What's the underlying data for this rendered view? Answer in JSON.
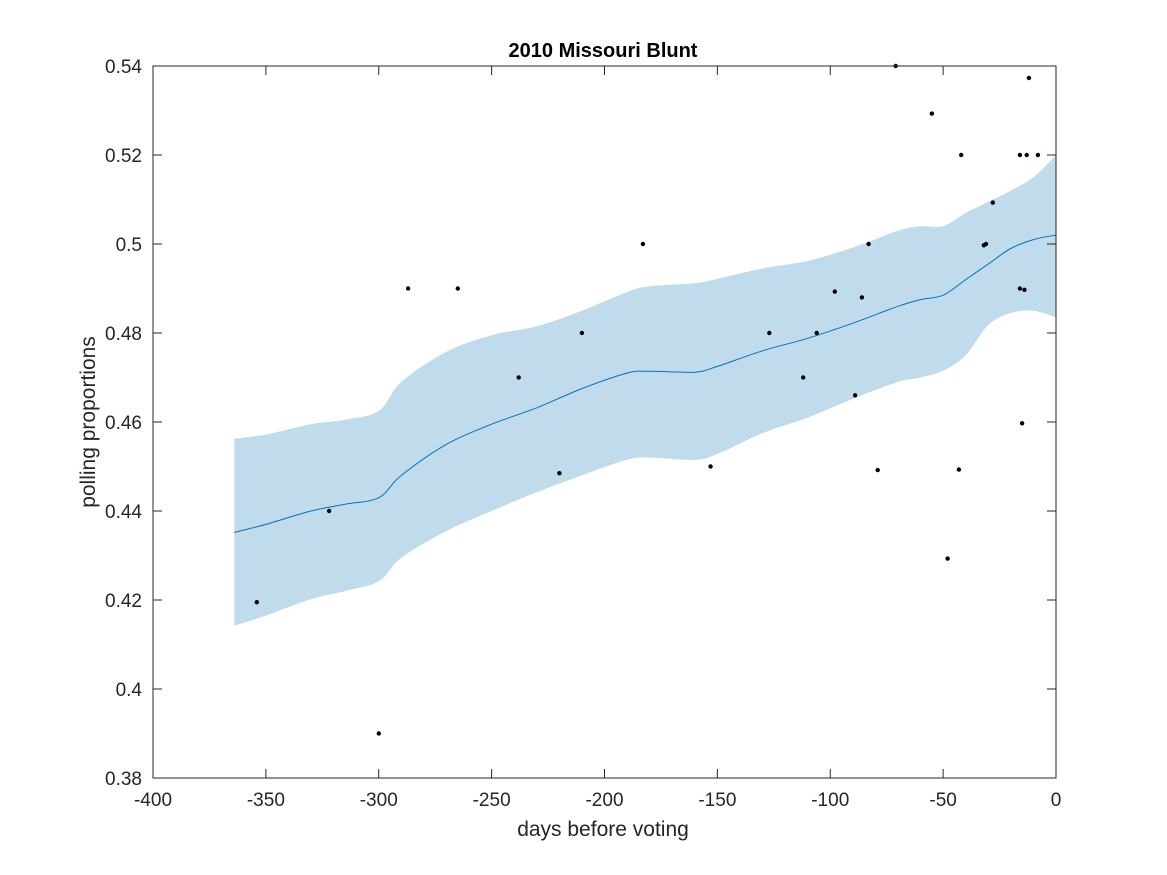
{
  "chart_data": {
    "type": "line",
    "title": "2010 Missouri Blunt",
    "xlabel": "days before voting",
    "ylabel": "polling proportions",
    "xlim": [
      -400,
      0
    ],
    "ylim": [
      0.38,
      0.54
    ],
    "xticks": [
      -400,
      -350,
      -300,
      -250,
      -200,
      -150,
      -100,
      -50,
      0
    ],
    "yticks": [
      0.38,
      0.4,
      0.42,
      0.44,
      0.46,
      0.48,
      0.5,
      0.52,
      0.54
    ],
    "xtick_labels": [
      "-400",
      "-350",
      "-300",
      "-250",
      "-200",
      "-150",
      "-100",
      "-50",
      "0"
    ],
    "ytick_labels": [
      "0.38",
      "0.4",
      "0.42",
      "0.44",
      "0.46",
      "0.48",
      "0.5",
      "0.52",
      "0.54"
    ],
    "grid": false,
    "colors": {
      "line": "#0072bd",
      "band": "#c0dcec",
      "points": "#000000",
      "axes": "#262626"
    },
    "trend": {
      "x": [
        -364,
        -350,
        -330,
        -315,
        -300,
        -290,
        -270,
        -250,
        -230,
        -210,
        -190,
        -180,
        -160,
        -150,
        -130,
        -110,
        -90,
        -70,
        -60,
        -50,
        -40,
        -30,
        -20,
        -10,
        0
      ],
      "y": [
        0.4352,
        0.437,
        0.44,
        0.4415,
        0.443,
        0.448,
        0.455,
        0.4595,
        0.4632,
        0.4675,
        0.471,
        0.4714,
        0.4712,
        0.4725,
        0.476,
        0.4788,
        0.4822,
        0.486,
        0.4875,
        0.4885,
        0.492,
        0.4955,
        0.499,
        0.501,
        0.502
      ]
    },
    "band": {
      "x": [
        -364,
        -350,
        -330,
        -315,
        -300,
        -290,
        -270,
        -250,
        -230,
        -210,
        -190,
        -180,
        -160,
        -150,
        -130,
        -110,
        -90,
        -70,
        -60,
        -50,
        -40,
        -30,
        -20,
        -10,
        0
      ],
      "upper": [
        0.4562,
        0.4572,
        0.4595,
        0.4605,
        0.4625,
        0.469,
        0.4758,
        0.4795,
        0.4815,
        0.485,
        0.4892,
        0.4905,
        0.4912,
        0.4922,
        0.4945,
        0.4962,
        0.4992,
        0.503,
        0.504,
        0.504,
        0.507,
        0.5095,
        0.512,
        0.515,
        0.52
      ],
      "lower": [
        0.4142,
        0.4165,
        0.4202,
        0.422,
        0.4242,
        0.4295,
        0.4355,
        0.44,
        0.4442,
        0.448,
        0.4515,
        0.452,
        0.4515,
        0.4528,
        0.4575,
        0.461,
        0.4652,
        0.469,
        0.47,
        0.4715,
        0.475,
        0.4818,
        0.4845,
        0.485,
        0.4835
      ]
    },
    "points": [
      {
        "x": -354,
        "y": 0.4195
      },
      {
        "x": -322,
        "y": 0.44
      },
      {
        "x": -300,
        "y": 0.39
      },
      {
        "x": -287,
        "y": 0.49
      },
      {
        "x": -265,
        "y": 0.49
      },
      {
        "x": -238,
        "y": 0.47
      },
      {
        "x": -220,
        "y": 0.4485
      },
      {
        "x": -210,
        "y": 0.48
      },
      {
        "x": -183,
        "y": 0.5
      },
      {
        "x": -153,
        "y": 0.45
      },
      {
        "x": -127,
        "y": 0.48
      },
      {
        "x": -112,
        "y": 0.47
      },
      {
        "x": -106,
        "y": 0.48
      },
      {
        "x": -98,
        "y": 0.4893
      },
      {
        "x": -89,
        "y": 0.466
      },
      {
        "x": -86,
        "y": 0.488
      },
      {
        "x": -83,
        "y": 0.5
      },
      {
        "x": -79,
        "y": 0.4492
      },
      {
        "x": -71,
        "y": 0.54
      },
      {
        "x": -55,
        "y": 0.5293
      },
      {
        "x": -48,
        "y": 0.4293
      },
      {
        "x": -43,
        "y": 0.4493
      },
      {
        "x": -42,
        "y": 0.52
      },
      {
        "x": -32,
        "y": 0.4997
      },
      {
        "x": -31,
        "y": 0.5
      },
      {
        "x": -28,
        "y": 0.5093
      },
      {
        "x": -16,
        "y": 0.52
      },
      {
        "x": -16,
        "y": 0.49
      },
      {
        "x": -15,
        "y": 0.4597
      },
      {
        "x": -14,
        "y": 0.4897
      },
      {
        "x": -13,
        "y": 0.52
      },
      {
        "x": -12,
        "y": 0.5373
      },
      {
        "x": -8,
        "y": 0.52
      }
    ]
  }
}
